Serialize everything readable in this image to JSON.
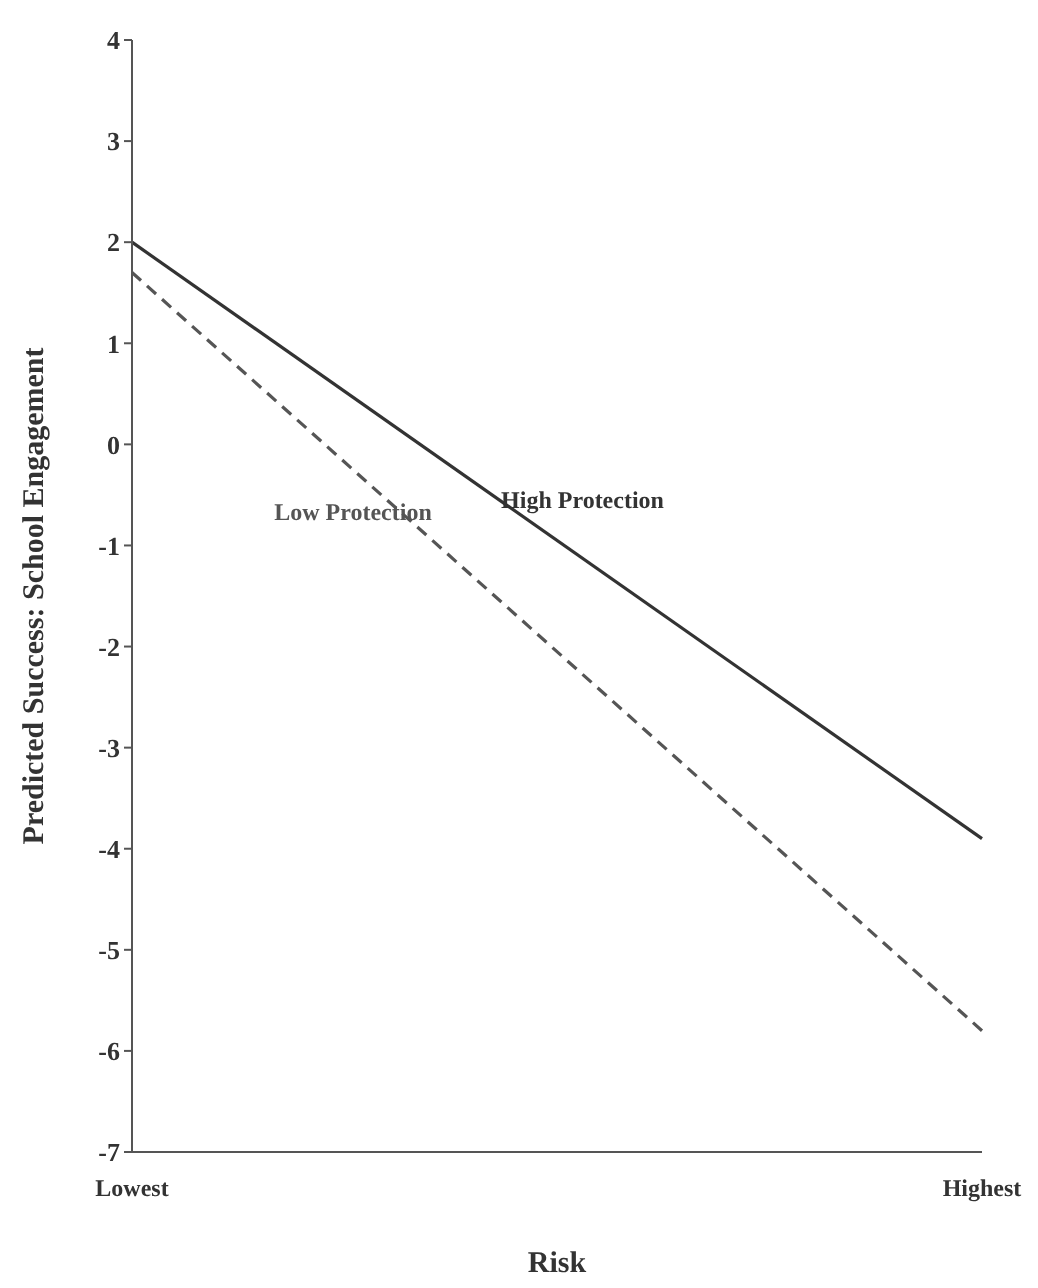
{
  "chart_data": {
    "type": "line",
    "xlabel": "Risk",
    "ylabel": "Predicted Success: School Engagement",
    "categories": [
      "Lowest",
      "Highest"
    ],
    "series": [
      {
        "name": "High Protection",
        "color": "#333333",
        "values": [
          2.0,
          -3.9
        ],
        "line_style": "solid"
      },
      {
        "name": "Low Protection",
        "color": "#555555",
        "values": [
          1.7,
          -5.8
        ],
        "line_style": "dashed"
      }
    ],
    "ylim": [
      -7,
      4
    ],
    "yticks": [
      -7,
      -6,
      -5,
      -4,
      -3,
      -2,
      -1,
      0,
      1,
      2,
      3,
      4
    ],
    "grid": false,
    "legend": false,
    "marker": "none"
  }
}
